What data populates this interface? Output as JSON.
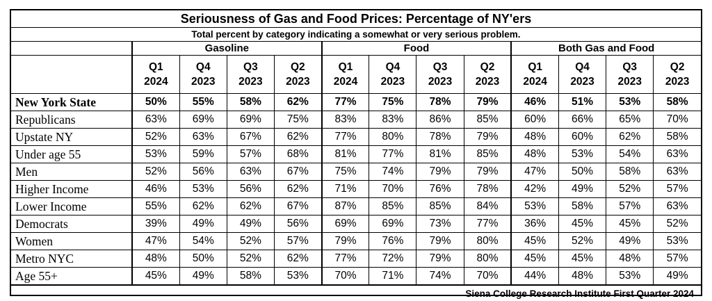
{
  "chart_data": {
    "type": "table",
    "title": "Seriousness of Gas and Food Prices:  Percentage of NY'ers",
    "subtitle": "Total percent by category indicating a somewhat or very serious problem.",
    "groups": [
      "Gasoline",
      "Food",
      "Both Gas and Food"
    ],
    "periods": [
      {
        "q": "Q1",
        "y": "2024"
      },
      {
        "q": "Q4",
        "y": "2023"
      },
      {
        "q": "Q3",
        "y": "2023"
      },
      {
        "q": "Q2",
        "y": "2023"
      }
    ],
    "rows": [
      {
        "label": "New York State",
        "bold": true,
        "values": [
          "50%",
          "55%",
          "58%",
          "62%",
          "77%",
          "75%",
          "78%",
          "79%",
          "46%",
          "51%",
          "53%",
          "58%"
        ]
      },
      {
        "label": "Republicans",
        "values": [
          "63%",
          "69%",
          "69%",
          "75%",
          "83%",
          "83%",
          "86%",
          "85%",
          "60%",
          "66%",
          "65%",
          "70%"
        ]
      },
      {
        "label": "Upstate NY",
        "values": [
          "52%",
          "63%",
          "67%",
          "62%",
          "77%",
          "80%",
          "78%",
          "79%",
          "48%",
          "60%",
          "62%",
          "58%"
        ]
      },
      {
        "label": "Under age 55",
        "values": [
          "53%",
          "59%",
          "57%",
          "68%",
          "81%",
          "77%",
          "81%",
          "85%",
          "48%",
          "53%",
          "54%",
          "63%"
        ]
      },
      {
        "label": "Men",
        "values": [
          "52%",
          "56%",
          "63%",
          "67%",
          "75%",
          "74%",
          "79%",
          "79%",
          "47%",
          "50%",
          "58%",
          "63%"
        ]
      },
      {
        "label": "Higher Income",
        "values": [
          "46%",
          "53%",
          "56%",
          "62%",
          "71%",
          "70%",
          "76%",
          "78%",
          "42%",
          "49%",
          "52%",
          "57%"
        ]
      },
      {
        "label": "Lower Income",
        "values": [
          "55%",
          "62%",
          "62%",
          "67%",
          "87%",
          "85%",
          "85%",
          "84%",
          "53%",
          "58%",
          "57%",
          "63%"
        ]
      },
      {
        "label": "Democrats",
        "values": [
          "39%",
          "49%",
          "49%",
          "56%",
          "69%",
          "69%",
          "73%",
          "77%",
          "36%",
          "45%",
          "45%",
          "52%"
        ]
      },
      {
        "label": "Women",
        "values": [
          "47%",
          "54%",
          "52%",
          "57%",
          "79%",
          "76%",
          "79%",
          "80%",
          "45%",
          "52%",
          "49%",
          "53%"
        ]
      },
      {
        "label": "Metro NYC",
        "values": [
          "48%",
          "50%",
          "52%",
          "62%",
          "77%",
          "72%",
          "79%",
          "80%",
          "45%",
          "45%",
          "48%",
          "57%"
        ]
      },
      {
        "label": "Age 55+",
        "values": [
          "45%",
          "49%",
          "58%",
          "53%",
          "70%",
          "71%",
          "74%",
          "70%",
          "44%",
          "48%",
          "53%",
          "49%"
        ]
      }
    ],
    "source": "Siena College Research Institute First Quarter 2024"
  }
}
